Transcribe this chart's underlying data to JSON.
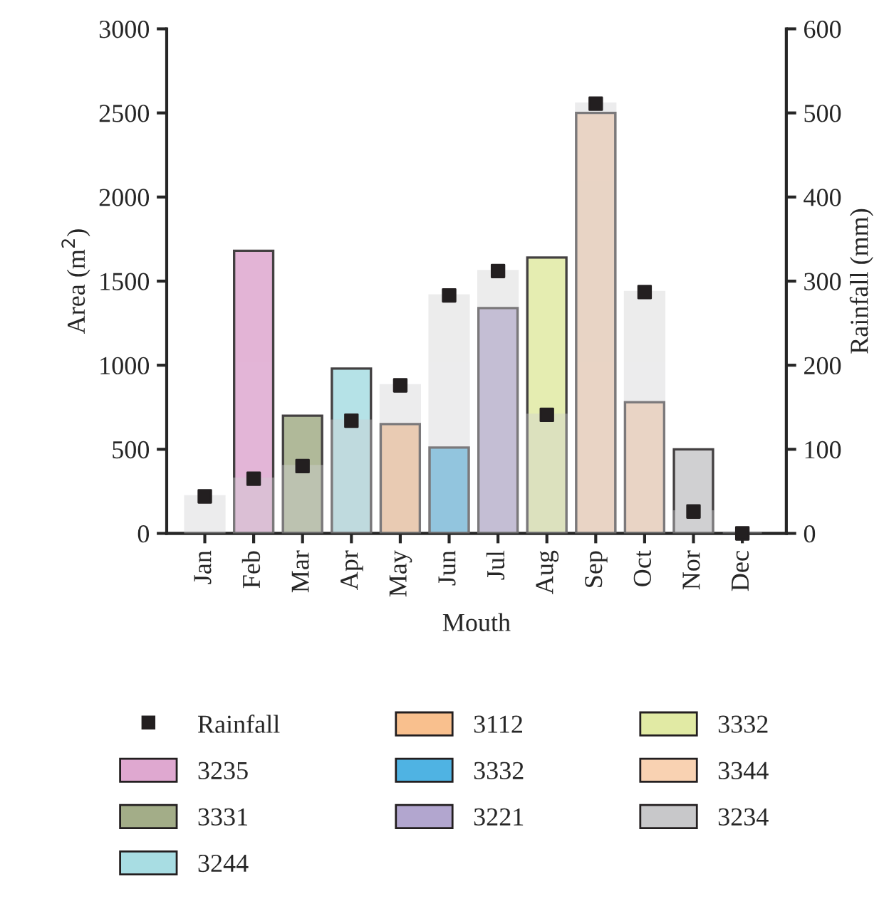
{
  "chart_data": {
    "type": "bar",
    "xlabel": "Mouth",
    "ylabel": "Area (m$^{2}$)",
    "y2label": "Rainfall (mm)",
    "categories": [
      "Jan",
      "Feb",
      "Mar",
      "Apr",
      "May",
      "Jun",
      "Jul",
      "Aug",
      "Sep",
      "Oct",
      "Nor",
      "Dec"
    ],
    "ylim": [
      0,
      3000
    ],
    "yticks": [
      0,
      500,
      1000,
      1500,
      2000,
      2500,
      3000
    ],
    "y2lim": [
      0,
      600
    ],
    "y2ticks": [
      0,
      100,
      200,
      300,
      400,
      500,
      600
    ],
    "grid": false,
    "legend": "bottom",
    "marker": "square",
    "series": [
      {
        "name": "Rainfall",
        "type": "scatter",
        "axis": "y2",
        "color": "#231f20",
        "values": [
          44,
          65,
          80,
          134,
          176,
          283,
          312,
          141,
          511,
          287,
          26,
          0
        ]
      },
      {
        "name": "3235",
        "axis": "y",
        "color": "#dfa8d0",
        "values": [
          null,
          1680,
          null,
          null,
          null,
          null,
          null,
          null,
          null,
          null,
          null,
          null
        ]
      },
      {
        "name": "3331",
        "axis": "y",
        "color": "#a3ad88",
        "values": [
          null,
          null,
          700,
          null,
          null,
          null,
          null,
          null,
          null,
          null,
          null,
          null
        ]
      },
      {
        "name": "3244",
        "axis": "y",
        "color": "#a8dde3",
        "values": [
          null,
          null,
          null,
          980,
          null,
          null,
          null,
          null,
          null,
          null,
          null,
          null
        ]
      },
      {
        "name": "3112",
        "axis": "y",
        "color": "#f9c08e",
        "values": [
          null,
          null,
          null,
          null,
          650,
          null,
          null,
          null,
          null,
          null,
          null,
          null
        ]
      },
      {
        "name": "3332",
        "axis": "y",
        "color": "#4fb3e3",
        "values": [
          null,
          null,
          null,
          null,
          null,
          510,
          null,
          null,
          null,
          null,
          null,
          null
        ]
      },
      {
        "name": "3221",
        "axis": "y",
        "color": "#b2a6cf",
        "values": [
          null,
          null,
          null,
          null,
          null,
          null,
          1340,
          null,
          null,
          null,
          null,
          null
        ]
      },
      {
        "name": "3332",
        "axis": "y",
        "color": "#e1eaa4",
        "values": [
          null,
          null,
          null,
          null,
          null,
          null,
          null,
          1640,
          null,
          null,
          null,
          null
        ]
      },
      {
        "name": "3344",
        "axis": "y",
        "color": "#f9d2b2",
        "values": [
          null,
          null,
          null,
          null,
          null,
          null,
          null,
          null,
          2500,
          780,
          null,
          null
        ]
      },
      {
        "name": "3234",
        "axis": "y",
        "color": "#c8c8ca",
        "values": [
          null,
          null,
          null,
          null,
          null,
          null,
          null,
          null,
          null,
          null,
          500,
          null
        ]
      },
      {
        "axis": "y2",
        "color": "#d0d0d2",
        "values": [
          44,
          65,
          80,
          134,
          176,
          283,
          312,
          141,
          511,
          287,
          26,
          0
        ]
      }
    ]
  }
}
